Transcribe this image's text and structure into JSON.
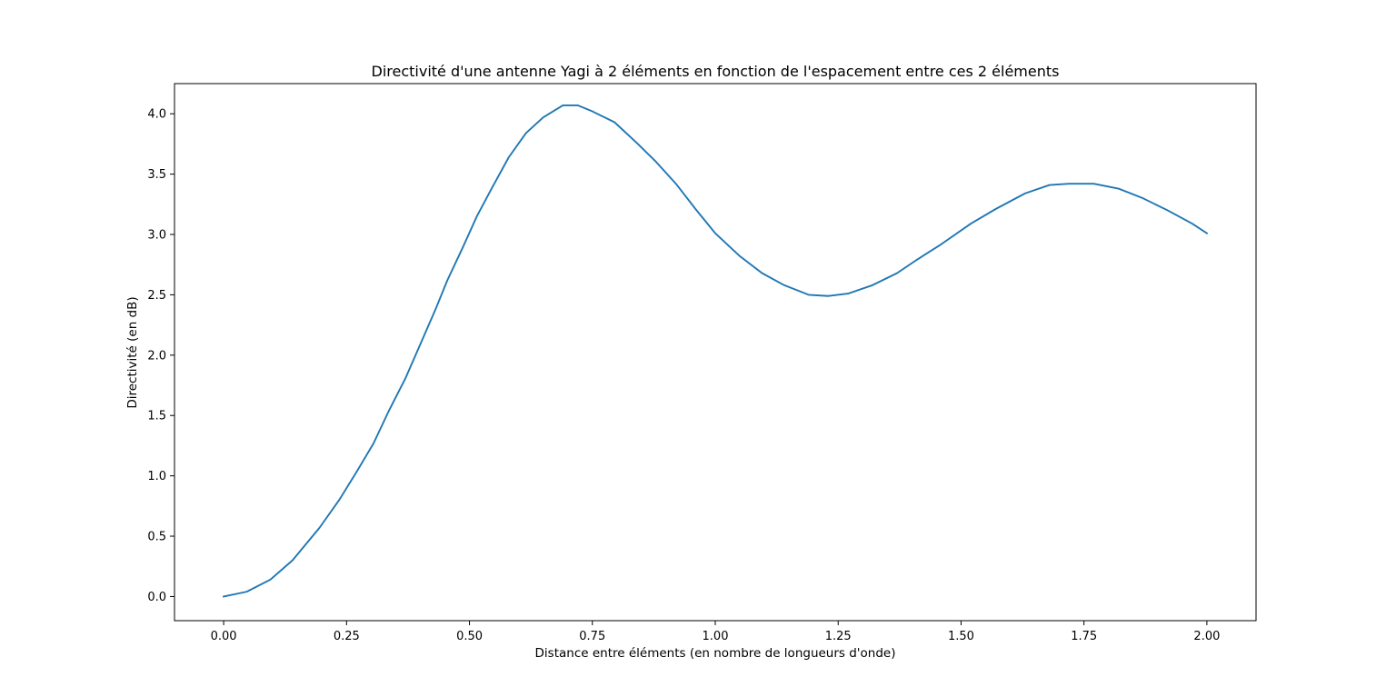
{
  "chart_data": {
    "type": "line",
    "title": "Directivité d'une antenne Yagi à 2 éléments en fonction de l'espacement entre ces 2 éléments",
    "xlabel": "Distance entre éléments (en nombre de longueurs d'onde)",
    "ylabel": "Directivité (en dB)",
    "xlim": [
      -0.1,
      2.1
    ],
    "ylim": [
      -0.2,
      4.25
    ],
    "xticks": [
      0.0,
      0.25,
      0.5,
      0.75,
      1.0,
      1.25,
      1.5,
      1.75,
      2.0
    ],
    "xtick_labels": [
      "0.00",
      "0.25",
      "0.50",
      "0.75",
      "1.00",
      "1.25",
      "1.50",
      "1.75",
      "2.00"
    ],
    "yticks": [
      0.0,
      0.5,
      1.0,
      1.5,
      2.0,
      2.5,
      3.0,
      3.5,
      4.0
    ],
    "ytick_labels": [
      "0.0",
      "0.5",
      "1.0",
      "1.5",
      "2.0",
      "2.5",
      "3.0",
      "3.5",
      "4.0"
    ],
    "grid": false,
    "legend": "none",
    "series": [
      {
        "color": "#1f77b4",
        "x": [
          0.0,
          0.047,
          0.095,
          0.14,
          0.195,
          0.235,
          0.27,
          0.305,
          0.335,
          0.37,
          0.4,
          0.43,
          0.455,
          0.485,
          0.515,
          0.545,
          0.58,
          0.615,
          0.65,
          0.69,
          0.72,
          0.75,
          0.795,
          0.84,
          0.88,
          0.92,
          0.96,
          1.0,
          1.05,
          1.095,
          1.14,
          1.19,
          1.23,
          1.27,
          1.32,
          1.37,
          1.41,
          1.46,
          1.52,
          1.57,
          1.63,
          1.68,
          1.72,
          1.77,
          1.82,
          1.87,
          1.92,
          1.97,
          2.0
        ],
        "y": [
          0.0,
          0.04,
          0.14,
          0.3,
          0.57,
          0.8,
          1.03,
          1.27,
          1.53,
          1.81,
          2.09,
          2.37,
          2.62,
          2.88,
          3.15,
          3.38,
          3.64,
          3.84,
          3.97,
          4.07,
          4.07,
          4.02,
          3.93,
          3.76,
          3.6,
          3.42,
          3.21,
          3.01,
          2.82,
          2.68,
          2.58,
          2.5,
          2.49,
          2.51,
          2.58,
          2.68,
          2.79,
          2.92,
          3.09,
          3.21,
          3.34,
          3.41,
          3.42,
          3.42,
          3.38,
          3.3,
          3.2,
          3.09,
          3.01
        ]
      }
    ]
  }
}
